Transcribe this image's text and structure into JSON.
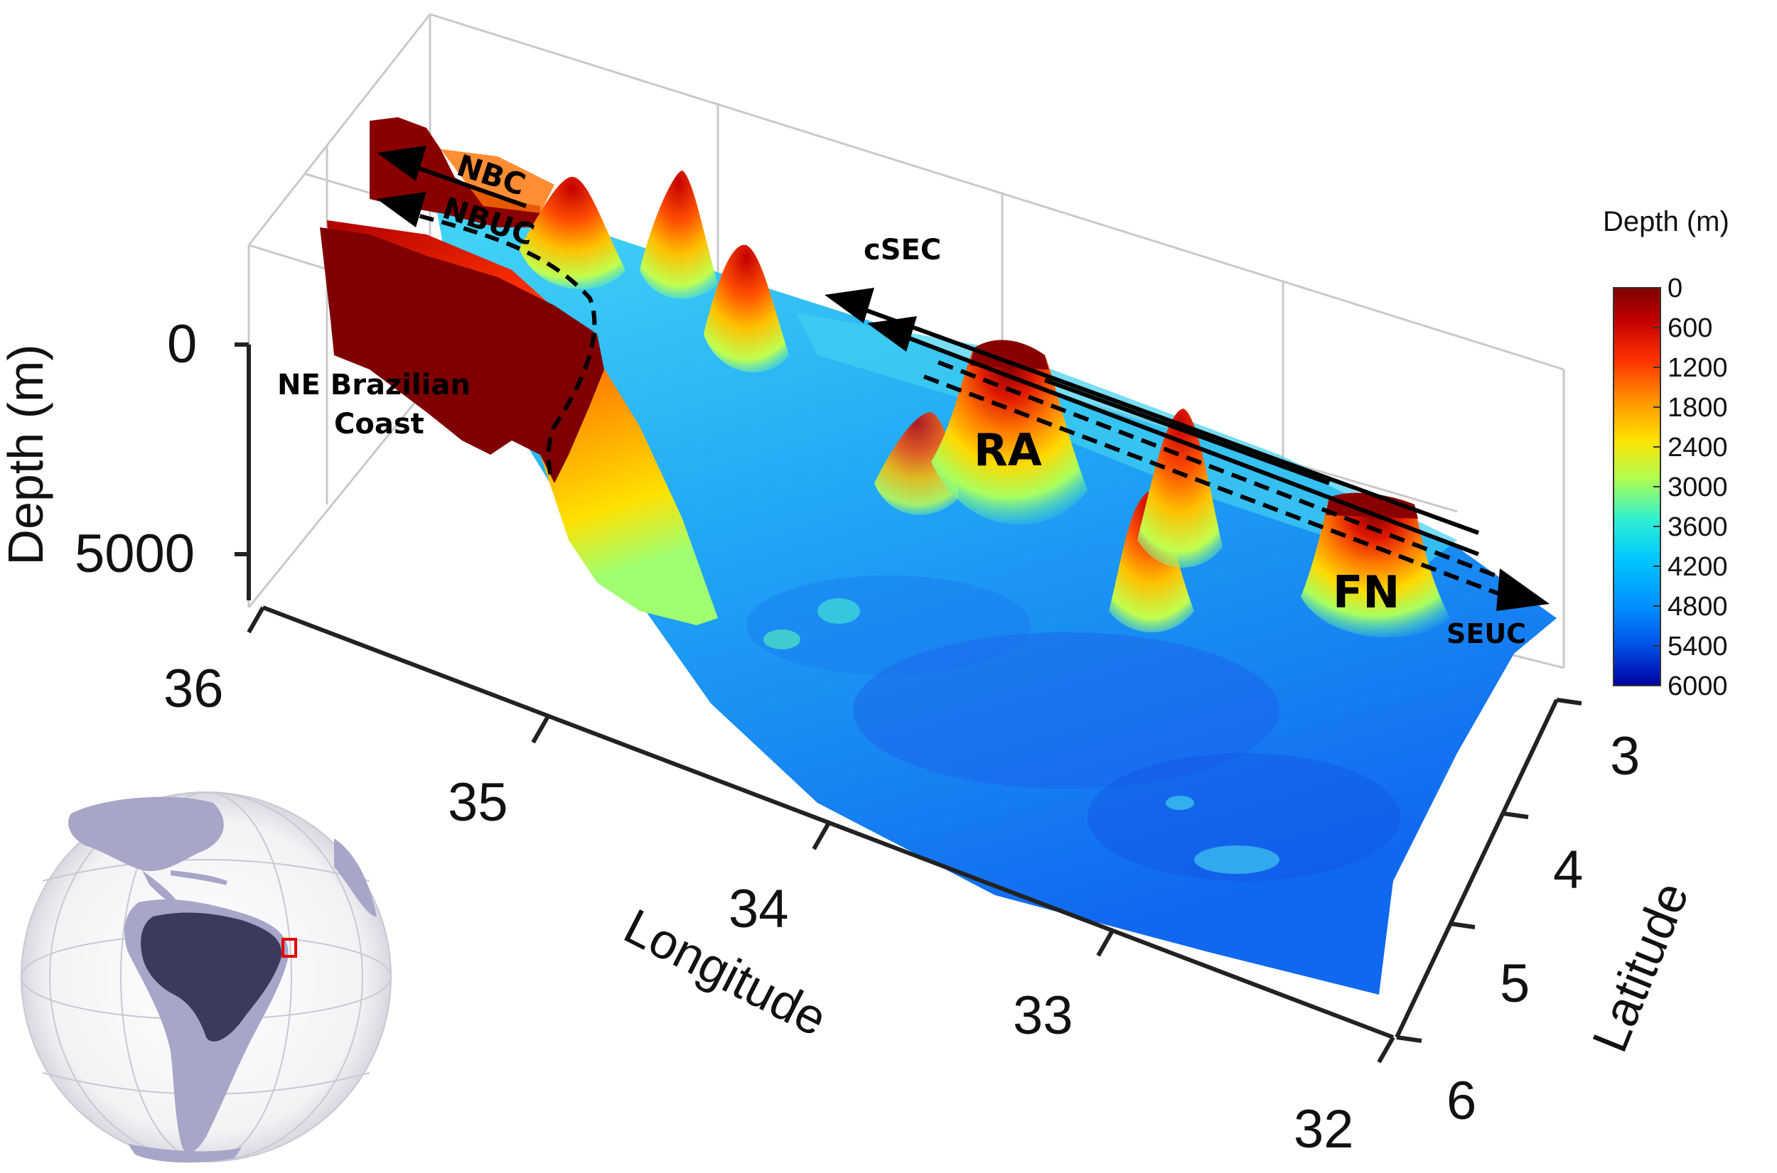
{
  "axes": {
    "depth": {
      "label": "Depth (m)",
      "ticks": [
        "0",
        "5000"
      ]
    },
    "longitude": {
      "label": "Longitude",
      "ticks": [
        "36",
        "35",
        "34",
        "33",
        "32"
      ]
    },
    "latitude": {
      "label": "Latitude",
      "ticks": [
        "3",
        "4",
        "5",
        "6"
      ]
    }
  },
  "annotations": {
    "coast": [
      "NE Brazilian",
      "Coast"
    ],
    "nbc": "NBC",
    "nbuc": "NBUC",
    "csec": "cSEC",
    "seuc": "SEUC",
    "ra": "RA",
    "fn": "FN"
  },
  "colorbar": {
    "title": "Depth (m)",
    "ticks": [
      "0",
      "600",
      "1200",
      "1800",
      "2400",
      "3000",
      "3600",
      "4200",
      "4800",
      "5400",
      "6000"
    ],
    "colors": [
      "#7f0000",
      "#d01010",
      "#ff5a00",
      "#ffb000",
      "#f0f020",
      "#80ff80",
      "#20e0e0",
      "#00b0ff",
      "#0070f0",
      "#0030d0",
      "#00008f"
    ]
  }
}
